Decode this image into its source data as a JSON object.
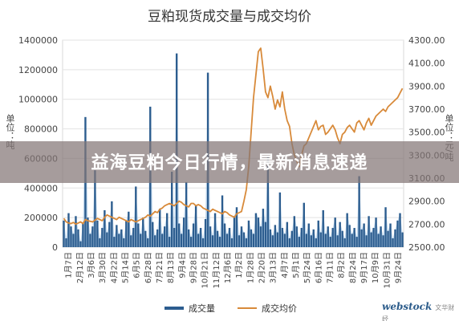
{
  "page": {
    "banner_text": "益海豆粕今日行情，最新消息速递",
    "logo_main": "webstock",
    "logo_sub": "文华财经"
  },
  "chart_data": {
    "type": "bar+line",
    "title": "豆粕现货成交量与成交均价",
    "y_left": {
      "label": "单位：吨",
      "ticks": [
        0,
        200000,
        400000,
        600000,
        800000,
        1000000,
        1200000,
        1400000
      ],
      "tick_labels": [
        "0",
        "200000",
        "400000",
        "600000",
        "800000",
        "1000000",
        "1200000",
        "1400000"
      ],
      "range": [
        0,
        1400000
      ]
    },
    "y_right": {
      "label": "单位：元/吨",
      "ticks": [
        2500,
        2700,
        2900,
        3100,
        3300,
        3500,
        3700,
        3900,
        4100,
        4300
      ],
      "tick_labels": [
        "2500.00",
        "2700.00",
        "2900.00",
        "3100.00",
        "3300.00",
        "3500.00",
        "3700.00",
        "3900.00",
        "4100.00",
        "4300.00"
      ],
      "range": [
        2500,
        4300
      ]
    },
    "x_tick_labels": [
      "1月7日",
      "2月12日",
      "3月6日",
      "3月30日",
      "4月22日",
      "5月14日",
      "6月5日",
      "6月28日",
      "7月21日",
      "8月13日",
      "9月4日",
      "9月28日",
      "10月21日",
      "11月12日",
      "12月6日",
      "1月2日",
      "1月28日",
      "2月20日",
      "3月13日",
      "4月7日",
      "5月1日",
      "5月24日",
      "6月16日",
      "7月11日",
      "8月2日",
      "8月24日",
      "9月17日",
      "10月9日",
      "10月31日",
      "9月24日"
    ],
    "series": [
      {
        "name": "成交量",
        "kind": "bar",
        "axis": "left",
        "color": "#2c5d8f",
        "values": [
          180000,
          60000,
          230000,
          140000,
          90000,
          210000,
          120000,
          40000,
          160000,
          880000,
          200000,
          90000,
          140000,
          520000,
          180000,
          60000,
          130000,
          250000,
          100000,
          170000,
          310000,
          70000,
          150000,
          90000,
          120000,
          60000,
          180000,
          240000,
          80000,
          130000,
          410000,
          160000,
          90000,
          200000,
          110000,
          60000,
          950000,
          170000,
          80000,
          120000,
          260000,
          90000,
          140000,
          230000,
          70000,
          510000,
          130000,
          1310000,
          160000,
          90000,
          200000,
          440000,
          120000,
          70000,
          160000,
          280000,
          90000,
          130000,
          60000,
          190000,
          1180000,
          140000,
          80000,
          230000,
          110000,
          70000,
          350000,
          160000,
          90000,
          130000,
          60000,
          210000,
          270000,
          80000,
          140000,
          100000,
          60000,
          180000,
          120000,
          90000,
          230000,
          200000,
          140000,
          260000,
          170000,
          610000,
          120000,
          80000,
          150000,
          100000,
          370000,
          130000,
          90000,
          170000,
          60000,
          110000,
          210000,
          140000,
          70000,
          130000,
          300000,
          90000,
          160000,
          80000,
          120000,
          60000,
          180000,
          100000,
          250000,
          90000,
          140000,
          70000,
          130000,
          200000,
          80000,
          170000,
          110000,
          60000,
          230000,
          150000,
          90000,
          130000,
          70000,
          480000,
          120000,
          160000,
          80000,
          210000,
          100000,
          130000,
          200000,
          90000,
          140000,
          80000,
          270000,
          110000,
          160000,
          60000,
          120000,
          180000,
          230000,
          100000
        ]
      },
      {
        "name": "成交均价",
        "kind": "line",
        "axis": "right",
        "color": "#d88a3a",
        "values": [
          2750,
          2720,
          2710,
          2705,
          2715,
          2700,
          2710,
          2720,
          2705,
          2740,
          2730,
          2725,
          2720,
          2735,
          2750,
          2740,
          2730,
          2760,
          2780,
          2770,
          2760,
          2750,
          2740,
          2760,
          2750,
          2740,
          2730,
          2720,
          2740,
          2730,
          2720,
          2730,
          2740,
          2750,
          2760,
          2780,
          2770,
          2790,
          2810,
          2800,
          2830,
          2840,
          2860,
          2870,
          2880,
          2870,
          2860,
          2880,
          2900,
          2890,
          2870,
          2860,
          2850,
          2880,
          2880,
          2860,
          2870,
          2860,
          2840,
          2830,
          2820,
          2810,
          2830,
          2820,
          2810,
          2800,
          2790,
          2810,
          2800,
          2780,
          2770,
          2760,
          2790,
          2800,
          2810,
          2900,
          3000,
          3200,
          3500,
          3800,
          4000,
          4200,
          4230,
          4050,
          3850,
          3800,
          3900,
          3810,
          3700,
          3780,
          3720,
          3850,
          3700,
          3600,
          3550,
          3400,
          3300,
          3250,
          3200,
          3300,
          3380,
          3400,
          3450,
          3500,
          3550,
          3600,
          3520,
          3550,
          3560,
          3480,
          3500,
          3530,
          3560,
          3520,
          3450,
          3400,
          3480,
          3500,
          3540,
          3560,
          3530,
          3500,
          3580,
          3600,
          3560,
          3520,
          3580,
          3620,
          3560,
          3600,
          3640,
          3660,
          3680,
          3700,
          3680,
          3720,
          3740,
          3760,
          3780,
          3800,
          3840,
          3880
        ]
      }
    ],
    "legend": {
      "placement": "bottom-center",
      "entries": [
        "成交量",
        "成交均价"
      ]
    },
    "grid": true
  }
}
